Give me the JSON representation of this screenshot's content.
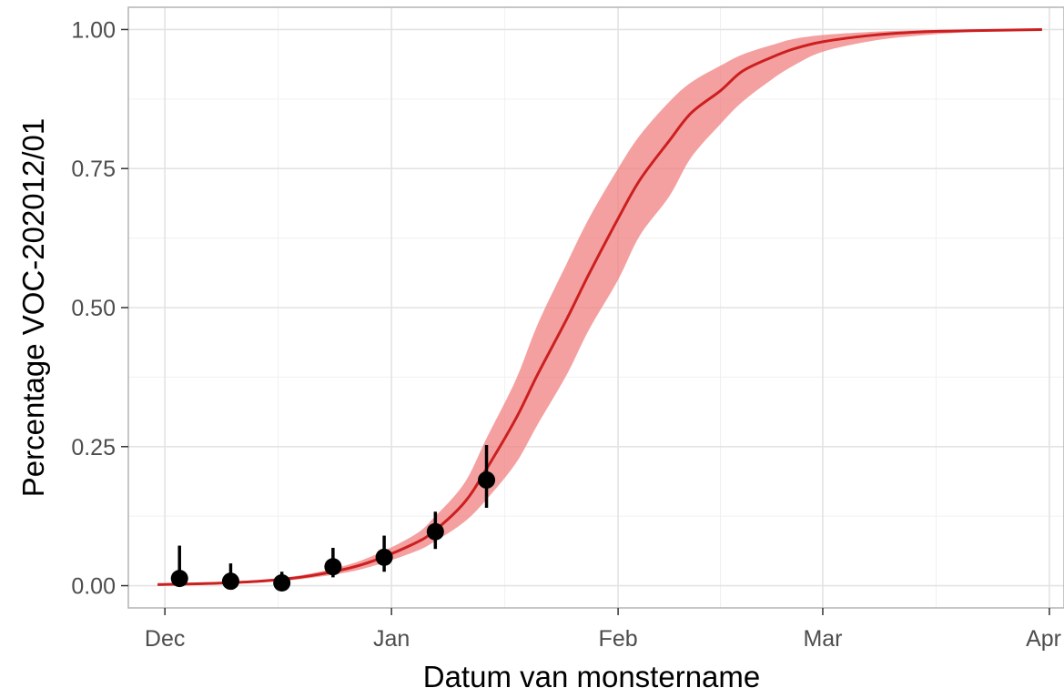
{
  "chart_data": {
    "type": "line",
    "xlabel": "Datum van monstername",
    "ylabel": "Percentage VOC-202012/01",
    "x_axis": {
      "type": "date",
      "range": [
        "2020-11-26",
        "2021-04-03"
      ],
      "ticks": [
        {
          "date": "2020-12-01",
          "label": "Dec"
        },
        {
          "date": "2021-01-01",
          "label": "Jan"
        },
        {
          "date": "2021-02-01",
          "label": "Feb"
        },
        {
          "date": "2021-03-01",
          "label": "Mar"
        },
        {
          "date": "2021-04-01",
          "label": "Apr"
        }
      ]
    },
    "y_axis": {
      "range": [
        -0.04,
        1.04
      ],
      "ticks": [
        {
          "value": 0.0,
          "label": "0.00"
        },
        {
          "value": 0.25,
          "label": "0.25"
        },
        {
          "value": 0.5,
          "label": "0.50"
        },
        {
          "value": 0.75,
          "label": "0.75"
        },
        {
          "value": 1.0,
          "label": "1.00"
        }
      ]
    },
    "grid": true,
    "legend": "none",
    "colors": {
      "fit_line": "#cc1f1f",
      "confidence_band": "#f08080",
      "points": "#000000",
      "grid": "#e3e3e3",
      "panel_border": "#b3b3b3"
    },
    "series": [
      {
        "kind": "fit",
        "x": [
          "2020-11-30",
          "2020-12-07",
          "2020-12-14",
          "2020-12-21",
          "2020-12-28",
          "2021-01-04",
          "2021-01-07",
          "2021-01-11",
          "2021-01-14",
          "2021-01-18",
          "2021-01-21",
          "2021-01-25",
          "2021-01-28",
          "2021-02-01",
          "2021-02-04",
          "2021-02-08",
          "2021-02-11",
          "2021-02-15",
          "2021-02-18",
          "2021-02-22",
          "2021-02-25",
          "2021-03-01",
          "2021-03-08",
          "2021-03-15",
          "2021-03-22",
          "2021-03-31"
        ],
        "y": [
          0.002,
          0.004,
          0.008,
          0.018,
          0.038,
          0.075,
          0.1,
          0.15,
          0.21,
          0.3,
          0.38,
          0.48,
          0.56,
          0.66,
          0.73,
          0.8,
          0.85,
          0.89,
          0.925,
          0.95,
          0.965,
          0.978,
          0.99,
          0.996,
          0.998,
          1.0
        ],
        "lower": [
          0.001,
          0.003,
          0.006,
          0.014,
          0.03,
          0.06,
          0.08,
          0.115,
          0.155,
          0.22,
          0.29,
          0.38,
          0.46,
          0.55,
          0.63,
          0.7,
          0.77,
          0.83,
          0.87,
          0.91,
          0.935,
          0.96,
          0.98,
          0.99,
          0.996,
          1.0
        ],
        "upper": [
          0.003,
          0.005,
          0.01,
          0.022,
          0.046,
          0.09,
          0.125,
          0.185,
          0.265,
          0.37,
          0.47,
          0.58,
          0.66,
          0.75,
          0.81,
          0.87,
          0.905,
          0.935,
          0.955,
          0.972,
          0.983,
          0.99,
          0.996,
          0.999,
          1.0,
          1.0
        ]
      },
      {
        "kind": "observed",
        "x": [
          "2020-12-03",
          "2020-12-10",
          "2020-12-17",
          "2020-12-24",
          "2020-12-31",
          "2021-01-07",
          "2021-01-14"
        ],
        "y": [
          0.013,
          0.008,
          0.005,
          0.034,
          0.051,
          0.097,
          0.19
        ],
        "lower": [
          0.0,
          0.0,
          0.0,
          0.015,
          0.025,
          0.066,
          0.14
        ],
        "upper": [
          0.072,
          0.04,
          0.025,
          0.068,
          0.09,
          0.133,
          0.253
        ]
      }
    ]
  }
}
